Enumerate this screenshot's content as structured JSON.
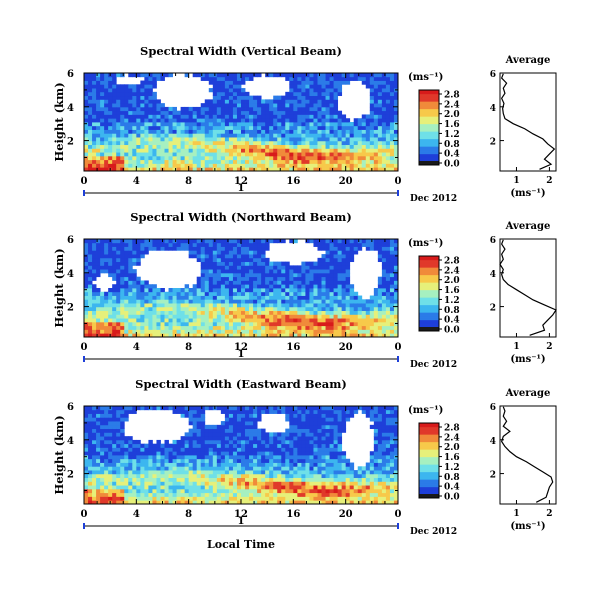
{
  "figure": {
    "xlabel": "Local Time",
    "date_label": "Dec 2012",
    "day_label": "1",
    "colorbar_unit": "(ms⁻¹)",
    "avg_title": "Average",
    "avg_xlabel": "(ms⁻¹)"
  },
  "colormap": [
    "#1a1a1a",
    "#1e3fd9",
    "#2b7be8",
    "#3cb6ef",
    "#6fe0e8",
    "#a6f0c0",
    "#e6f07a",
    "#f7c94a",
    "#f08a3a",
    "#e0392a",
    "#d81b1b"
  ],
  "chart_data": [
    {
      "type": "heatmap",
      "title": "Spectral Width (Vertical Beam)",
      "ylabel": "Height (km)",
      "x_ticks": [
        "0",
        "4",
        "8",
        "12",
        "16",
        "20",
        "0"
      ],
      "y_ticks": [
        "2",
        "4",
        "6"
      ],
      "xlim": [
        0,
        24
      ],
      "ylim": [
        0.2,
        6
      ],
      "colorbar_ticks": [
        "0.0",
        "0.4",
        "0.8",
        "1.2",
        "1.6",
        "2.0",
        "2.4",
        "2.8"
      ],
      "colorbar_range": [
        0,
        3.0
      ],
      "profile_ticks_x": [
        "1",
        "2"
      ],
      "profile_ticks_y": [
        "2",
        "4",
        "6"
      ],
      "profile_xlim": [
        0.5,
        2.2
      ],
      "profile_ylim": [
        0.2,
        6
      ],
      "profile": [
        [
          0.3,
          1.7
        ],
        [
          0.6,
          2.05
        ],
        [
          0.9,
          1.85
        ],
        [
          1.2,
          2.0
        ],
        [
          1.5,
          2.15
        ],
        [
          1.8,
          1.95
        ],
        [
          2.1,
          1.8
        ],
        [
          2.4,
          1.5
        ],
        [
          2.7,
          1.25
        ],
        [
          3.0,
          0.9
        ],
        [
          3.3,
          0.65
        ],
        [
          3.6,
          0.6
        ],
        [
          3.9,
          0.58
        ],
        [
          4.2,
          0.62
        ],
        [
          4.5,
          0.55
        ],
        [
          4.8,
          0.65
        ],
        [
          5.1,
          0.6
        ],
        [
          5.4,
          0.7
        ],
        [
          5.7,
          0.55
        ],
        [
          5.95,
          0.6
        ]
      ]
    },
    {
      "type": "heatmap",
      "title": "Spectral Width (Northward Beam)",
      "ylabel": "Height (km)",
      "x_ticks": [
        "0",
        "4",
        "8",
        "12",
        "16",
        "20",
        "0"
      ],
      "y_ticks": [
        "2",
        "4",
        "6"
      ],
      "xlim": [
        0,
        24
      ],
      "ylim": [
        0.2,
        6
      ],
      "colorbar_ticks": [
        "0.0",
        "0.4",
        "0.8",
        "1.2",
        "1.6",
        "2.0",
        "2.4",
        "2.8"
      ],
      "colorbar_range": [
        0,
        3.0
      ],
      "profile_ticks_x": [
        "1",
        "2"
      ],
      "profile_ticks_y": [
        "2",
        "4",
        "6"
      ],
      "profile_xlim": [
        0.5,
        2.2
      ],
      "profile_ylim": [
        0.2,
        6
      ],
      "profile": [
        [
          0.3,
          1.4
        ],
        [
          0.6,
          1.85
        ],
        [
          0.9,
          1.8
        ],
        [
          1.2,
          1.95
        ],
        [
          1.5,
          2.1
        ],
        [
          1.8,
          2.2
        ],
        [
          2.1,
          1.85
        ],
        [
          2.4,
          1.5
        ],
        [
          2.7,
          1.25
        ],
        [
          3.0,
          1.0
        ],
        [
          3.3,
          0.75
        ],
        [
          3.6,
          0.6
        ],
        [
          3.9,
          0.55
        ],
        [
          4.2,
          0.6
        ],
        [
          4.5,
          0.5
        ],
        [
          4.8,
          0.6
        ],
        [
          5.1,
          0.55
        ],
        [
          5.4,
          0.65
        ],
        [
          5.7,
          0.55
        ],
        [
          5.95,
          0.6
        ]
      ]
    },
    {
      "type": "heatmap",
      "title": "Spectral Width (Eastward Beam)",
      "ylabel": "Height (km)",
      "x_ticks": [
        "0",
        "4",
        "8",
        "12",
        "16",
        "20",
        "0"
      ],
      "y_ticks": [
        "2",
        "4",
        "6"
      ],
      "xlim": [
        0,
        24
      ],
      "ylim": [
        0.2,
        6
      ],
      "colorbar_ticks": [
        "0.0",
        "0.4",
        "0.8",
        "1.2",
        "1.6",
        "2.0",
        "2.4",
        "2.8"
      ],
      "colorbar_range": [
        0,
        3.0
      ],
      "profile_ticks_x": [
        "1",
        "2"
      ],
      "profile_ticks_y": [
        "2",
        "4",
        "6"
      ],
      "profile_xlim": [
        0.5,
        2.2
      ],
      "profile_ylim": [
        0.2,
        6
      ],
      "profile": [
        [
          0.3,
          1.6
        ],
        [
          0.6,
          1.9
        ],
        [
          0.9,
          1.95
        ],
        [
          1.2,
          2.0
        ],
        [
          1.5,
          2.1
        ],
        [
          1.8,
          2.05
        ],
        [
          2.1,
          1.8
        ],
        [
          2.4,
          1.55
        ],
        [
          2.7,
          1.3
        ],
        [
          3.0,
          1.0
        ],
        [
          3.3,
          0.8
        ],
        [
          3.6,
          0.65
        ],
        [
          3.9,
          0.55
        ],
        [
          4.2,
          0.6
        ],
        [
          4.5,
          0.8
        ],
        [
          4.8,
          0.6
        ],
        [
          5.1,
          0.7
        ],
        [
          5.4,
          0.6
        ],
        [
          5.7,
          0.65
        ],
        [
          5.95,
          0.6
        ]
      ]
    }
  ]
}
